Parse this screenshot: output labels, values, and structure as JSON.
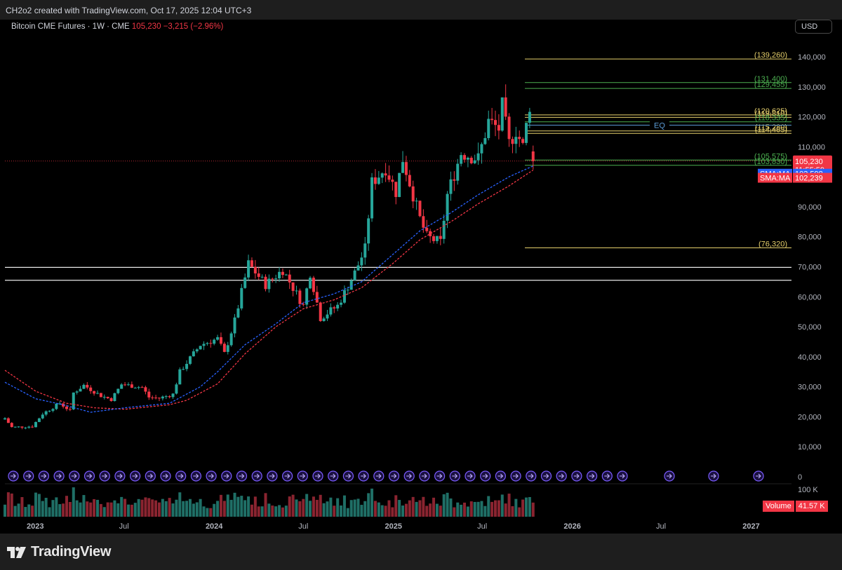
{
  "attribution": "CH2o2 created with TradingView.com, Oct 17, 2025 12:04 UTC+3",
  "legend": {
    "symbol": "Bitcoin CME Futures · 1W · CME",
    "price": "105,230",
    "change": "−3,215 (−2.96%)"
  },
  "currency_button": "USD",
  "brand": "TradingView",
  "colors": {
    "up": "#26a69a",
    "down": "#f23645",
    "sma_fast": "#2962ff",
    "sma_slow": "#f23645",
    "level_yellow": "#e5cf6b",
    "level_green": "#4caf50",
    "eq": "#5b9bd5"
  },
  "chart_data": {
    "type": "candlestick",
    "interval": "1W",
    "y_axis": {
      "ticks": [
        "140,000",
        "130,000",
        "120,000",
        "110,000",
        "90,000",
        "80,000",
        "70,000",
        "60,000",
        "50,000",
        "40,000",
        "30,000",
        "20,000",
        "10,000",
        "0"
      ],
      "range": [
        0,
        147000
      ]
    },
    "x_axis": {
      "ticks": [
        {
          "label": "2023",
          "date": "2023-01-01",
          "bold": true
        },
        {
          "label": "Jul",
          "date": "2023-07-01",
          "bold": false
        },
        {
          "label": "2024",
          "date": "2024-01-01",
          "bold": true
        },
        {
          "label": "Jul",
          "date": "2024-07-01",
          "bold": false
        },
        {
          "label": "2025",
          "date": "2025-01-01",
          "bold": true
        },
        {
          "label": "Jul",
          "date": "2025-07-01",
          "bold": false
        },
        {
          "label": "2026",
          "date": "2026-01-01",
          "bold": true
        },
        {
          "label": "Jul",
          "date": "2026-07-01",
          "bold": false
        },
        {
          "label": "2027",
          "date": "2027-01-01",
          "bold": true
        }
      ],
      "range": [
        "2022-10-31",
        "2027-03-20"
      ]
    },
    "price_anchors": [
      [
        "2022-10-31",
        19500
      ],
      [
        "2022-11-14",
        16500
      ],
      [
        "2022-12-26",
        16800
      ],
      [
        "2023-01-16",
        21000
      ],
      [
        "2023-02-20",
        24500
      ],
      [
        "2023-03-13",
        22000
      ],
      [
        "2023-03-20",
        28000
      ],
      [
        "2023-04-10",
        30500
      ],
      [
        "2023-05-15",
        27000
      ],
      [
        "2023-06-05",
        25800
      ],
      [
        "2023-06-26",
        30800
      ],
      [
        "2023-08-07",
        29800
      ],
      [
        "2023-08-21",
        26500
      ],
      [
        "2023-09-11",
        26200
      ],
      [
        "2023-10-09",
        27500
      ],
      [
        "2023-10-23",
        35000
      ],
      [
        "2023-12-04",
        44000
      ],
      [
        "2024-01-08",
        46000
      ],
      [
        "2024-01-22",
        41000
      ],
      [
        "2024-02-12",
        52000
      ],
      [
        "2024-03-11",
        71000
      ],
      [
        "2024-04-15",
        64000
      ],
      [
        "2024-05-20",
        69000
      ],
      [
        "2024-07-01",
        57000
      ],
      [
        "2024-07-15",
        68000
      ],
      [
        "2024-08-05",
        53000
      ],
      [
        "2024-09-09",
        57000
      ],
      [
        "2024-10-14",
        68000
      ],
      [
        "2024-11-04",
        76000
      ],
      [
        "2024-11-18",
        98000
      ],
      [
        "2024-12-16",
        103000
      ],
      [
        "2025-01-06",
        95000
      ],
      [
        "2025-01-20",
        106000
      ],
      [
        "2025-02-03",
        98000
      ],
      [
        "2025-02-24",
        86000
      ],
      [
        "2025-03-10",
        80000
      ],
      [
        "2025-04-07",
        78000
      ],
      [
        "2025-04-21",
        94000
      ],
      [
        "2025-05-19",
        108000
      ],
      [
        "2025-06-23",
        106000
      ],
      [
        "2025-07-14",
        118500
      ],
      [
        "2025-08-04",
        116000
      ],
      [
        "2025-08-11",
        123500
      ],
      [
        "2025-08-25",
        111000
      ],
      [
        "2025-09-08",
        115500
      ],
      [
        "2025-09-22",
        110000
      ],
      [
        "2025-10-06",
        124000
      ],
      [
        "2025-10-13",
        105230
      ]
    ],
    "sma_fast": {
      "label": "SMA:MA",
      "value": "103,598",
      "points": [
        [
          "2022-10-31",
          31500
        ],
        [
          "2023-01-02",
          26000
        ],
        [
          "2023-02-27",
          24000
        ],
        [
          "2023-04-24",
          21500
        ],
        [
          "2023-07-03",
          23000
        ],
        [
          "2023-10-02",
          24500
        ],
        [
          "2023-12-04",
          30000
        ],
        [
          "2024-01-08",
          35000
        ],
        [
          "2024-03-04",
          44000
        ],
        [
          "2024-05-06",
          51000
        ],
        [
          "2024-07-01",
          58000
        ],
        [
          "2024-09-02",
          61000
        ],
        [
          "2024-10-28",
          65000
        ],
        [
          "2024-12-30",
          74000
        ],
        [
          "2025-02-24",
          82000
        ],
        [
          "2025-04-28",
          88000
        ],
        [
          "2025-06-23",
          94000
        ],
        [
          "2025-08-25",
          100000
        ],
        [
          "2025-10-13",
          103598
        ]
      ]
    },
    "sma_slow": {
      "label": "SMA:MA",
      "value": "102,239",
      "points": [
        [
          "2022-10-31",
          35500
        ],
        [
          "2023-01-02",
          28500
        ],
        [
          "2023-03-06",
          24500
        ],
        [
          "2023-05-01",
          23000
        ],
        [
          "2023-07-03",
          22500
        ],
        [
          "2023-10-02",
          24000
        ],
        [
          "2023-11-06",
          25500
        ],
        [
          "2024-01-08",
          31000
        ],
        [
          "2024-03-04",
          41000
        ],
        [
          "2024-05-06",
          50000
        ],
        [
          "2024-07-01",
          56000
        ],
        [
          "2024-09-02",
          59000
        ],
        [
          "2024-10-28",
          63000
        ],
        [
          "2024-12-30",
          71000
        ],
        [
          "2025-02-24",
          79000
        ],
        [
          "2025-04-28",
          85000
        ],
        [
          "2025-06-23",
          91000
        ],
        [
          "2025-08-25",
          97000
        ],
        [
          "2025-10-13",
          102239
        ]
      ]
    },
    "levels": [
      {
        "label": "(139,260)",
        "value": 139260,
        "color": "#e5cf6b"
      },
      {
        "label": "(131,400)",
        "value": 131400,
        "color": "#4caf50"
      },
      {
        "label": "(129,455)",
        "value": 129455,
        "color": "#4caf50"
      },
      {
        "label": "(120,625)",
        "value": 120625,
        "color": "#e5cf6b"
      },
      {
        "label": "(119,810)",
        "value": 119810,
        "color": "#e5cf6b"
      },
      {
        "label": "(118,335)",
        "value": 118335,
        "color": "#4caf50"
      },
      {
        "label": "(115,280)",
        "value": 115280,
        "color": "#e5cf6b"
      },
      {
        "label": "(114,465)",
        "value": 114465,
        "color": "#e5cf6b"
      },
      {
        "label": "(105,575)",
        "value": 105575,
        "color": "#4caf50"
      },
      {
        "label": "(103,830)",
        "value": 103830,
        "color": "#4caf50"
      },
      {
        "label": "(76,320)",
        "value": 76320,
        "color": "#e5cf6b"
      }
    ],
    "eq_level": {
      "label": "EQ",
      "value": 117200
    },
    "horizontal_lines": [
      69800,
      65500
    ],
    "current_price": {
      "value": 105230,
      "label": "105,230",
      "countdown": "11:55:59"
    },
    "volume": {
      "legend_label": "Volume",
      "legend_value": "41.57 K",
      "scale_label": "100 K"
    }
  }
}
